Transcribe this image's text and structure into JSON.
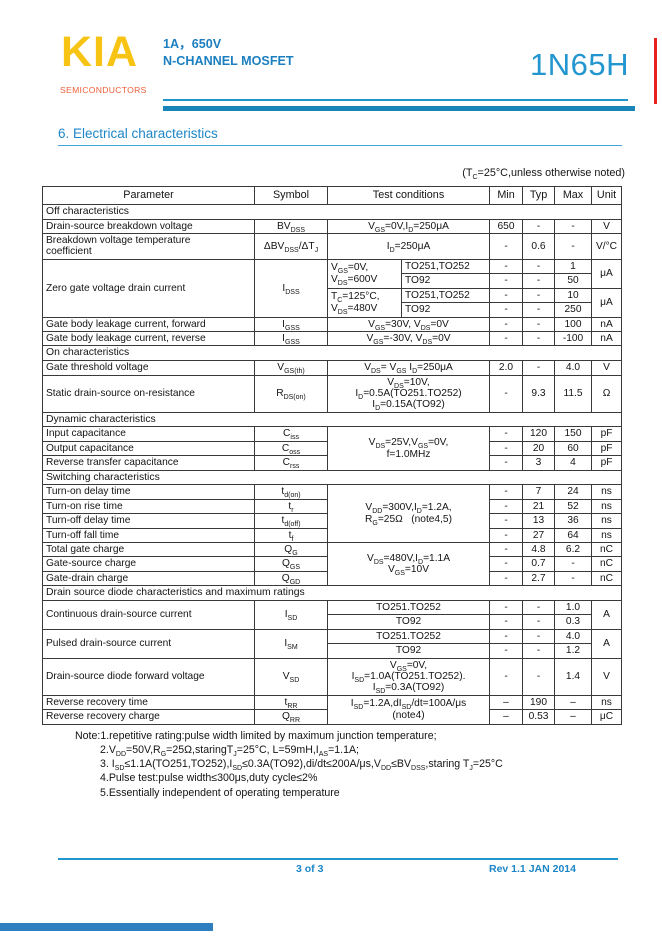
{
  "header": {
    "logo": "KIA",
    "logo_sub": "SEMICONDUCTORS",
    "rating": "1A，650V",
    "device_type": "N-CHANNEL MOSFET",
    "part_number": "1N65H",
    "colors": {
      "logo_yellow": "#f8c413",
      "logo_orange": "#ee5f38",
      "header_blue": "#1c7fc0",
      "rule_blue": "#2095cc",
      "red_accent": "#e8231d"
    }
  },
  "section_title": "6.  Electrical characteristics",
  "table_note": "(T~C~=25°C,unless otherwise noted)",
  "table": {
    "rows": [
      [
        "Parameter",
        "Symbol",
        {
          "t": "Test conditions",
          "c": 2
        },
        "Min",
        "Typ",
        "Max",
        "Unit"
      ],
      [
        {
          "t": "Off characteristics",
          "c": 8,
          "cls": "sec"
        }
      ],
      [
        {
          "t": "Drain-source breakdown voltage",
          "cls": "l"
        },
        "BV~DSS~",
        {
          "t": "V~GS~=0V,I~D~=250μA",
          "c": 2
        },
        "650",
        "-",
        "-",
        "V"
      ],
      [
        {
          "t": "Breakdown voltage temperature\ncoefficient",
          "cls": "l"
        },
        "ΔBV~DSS~/ΔT~J~",
        {
          "t": "I~D~=250μA",
          "c": 2
        },
        "-",
        "0.6",
        "-",
        "V/°C"
      ],
      [
        {
          "t": "Zero gate voltage drain current",
          "r": 4,
          "cls": "l"
        },
        {
          "t": "I~DSS~",
          "r": 4
        },
        {
          "t": "V~GS~=0V,\nV~DS~=600V",
          "r": 2,
          "cls": "l"
        },
        {
          "t": "TO251,TO252",
          "cls": "l"
        },
        "-",
        "-",
        "1",
        {
          "t": "μA",
          "r": 2
        }
      ],
      [
        {
          "t": "TO92",
          "cls": "l"
        },
        "-",
        "-",
        "50"
      ],
      [
        {
          "t": "T~C~=125°C,\nV~DS~=480V",
          "r": 2,
          "cls": "l"
        },
        {
          "t": "TO251,TO252",
          "cls": "l"
        },
        "-",
        "-",
        "10",
        {
          "t": "μA",
          "r": 2
        }
      ],
      [
        {
          "t": "TO92",
          "cls": "l"
        },
        "-",
        "-",
        "250"
      ],
      [
        {
          "t": "Gate body leakage current, forward",
          "cls": "l"
        },
        "I~GSS~",
        {
          "t": "V~GS~=30V, V~DS~=0V",
          "c": 2
        },
        "-",
        "-",
        "100",
        "nA"
      ],
      [
        {
          "t": "Gate body leakage current, reverse",
          "cls": "l"
        },
        "I~GSS~",
        {
          "t": "V~GS~=-30V, V~DS~=0V",
          "c": 2
        },
        "-",
        "-",
        "-100",
        "nA"
      ],
      [
        {
          "t": "On characteristics",
          "c": 8,
          "cls": "sec"
        }
      ],
      [
        {
          "t": "Gate threshold voltage",
          "cls": "l"
        },
        "V~GS(th)~",
        {
          "t": "V~DS~= V~GS~ I~D~=250μA",
          "c": 2
        },
        "2.0",
        "-",
        "4.0",
        "V"
      ],
      [
        {
          "t": "Static drain-source on-resistance",
          "cls": "l"
        },
        "R~DS(on)~",
        {
          "t": "V~DS~=10V,\nI~D~=0.5A(TO251.TO252)\nI~D~=0.15A(TO92)",
          "c": 2
        },
        "-",
        "9.3",
        "11.5",
        "Ω"
      ],
      [
        {
          "t": "Dynamic characteristics",
          "c": 8,
          "cls": "sec"
        }
      ],
      [
        {
          "t": "Input capacitance",
          "cls": "l"
        },
        "C~iss~",
        {
          "t": "V~DS~=25V,V~GS~=0V,\nf=1.0MHz",
          "c": 2,
          "r": 3
        },
        "-",
        "120",
        "150",
        "pF"
      ],
      [
        {
          "t": "Output capacitance",
          "cls": "l"
        },
        "C~oss~",
        "-",
        "20",
        "60",
        "pF"
      ],
      [
        {
          "t": "Reverse transfer capacitance",
          "cls": "l"
        },
        "C~rss~",
        "-",
        "3",
        "4",
        "pF"
      ],
      [
        {
          "t": "Switching characteristics",
          "c": 8,
          "cls": "sec"
        }
      ],
      [
        {
          "t": "Turn-on delay time",
          "cls": "l"
        },
        "t~d(on)~",
        {
          "t": "V~DD~=300V,I~D~=1.2A,\nR~G~=25Ω   (note4,5)",
          "c": 2,
          "r": 4
        },
        "-",
        "7",
        "24",
        "ns"
      ],
      [
        {
          "t": "Turn-on rise time",
          "cls": "l"
        },
        "t~r~",
        "-",
        "21",
        "52",
        "ns"
      ],
      [
        {
          "t": "Turn-off delay time",
          "cls": "l"
        },
        "t~d(off)~",
        "-",
        "13",
        "36",
        "ns"
      ],
      [
        {
          "t": "Turn-off fall time",
          "cls": "l"
        },
        "t~f~",
        "-",
        "27",
        "64",
        "ns"
      ],
      [
        {
          "t": "Total gate charge",
          "cls": "l"
        },
        "Q~G~",
        {
          "t": "V~DS~=480V,I~D~=1.1A\nV~GS~=10V",
          "c": 2,
          "r": 3
        },
        "-",
        "4.8",
        "6.2",
        "nC"
      ],
      [
        {
          "t": "Gate-source charge",
          "cls": "l"
        },
        "Q~GS~",
        "-",
        "0.7",
        "-",
        "nC"
      ],
      [
        {
          "t": "Gate-drain charge",
          "cls": "l"
        },
        "Q~GD~",
        "-",
        "2.7",
        "-",
        "nC"
      ],
      [
        {
          "t": "Drain source diode characteristics and maximum ratings",
          "c": 8,
          "cls": "sec"
        }
      ],
      [
        {
          "t": "Continuous drain-source current",
          "r": 2,
          "cls": "l"
        },
        {
          "t": "I~SD~",
          "r": 2
        },
        {
          "t": "TO251.TO252",
          "c": 2
        },
        "-",
        "-",
        "1.0",
        {
          "t": "A",
          "r": 2
        }
      ],
      [
        {
          "t": "TO92",
          "c": 2
        },
        "-",
        "-",
        "0.3"
      ],
      [
        {
          "t": "Pulsed drain-source current",
          "r": 2,
          "cls": "l"
        },
        {
          "t": "I~SM~",
          "r": 2
        },
        {
          "t": "TO251.TO252",
          "c": 2
        },
        "-",
        "-",
        "4.0",
        {
          "t": "A",
          "r": 2
        }
      ],
      [
        {
          "t": "TO92",
          "c": 2
        },
        "-",
        "-",
        "1.2"
      ],
      [
        {
          "t": "Drain-source diode forward voltage",
          "cls": "l"
        },
        "V~SD~",
        {
          "t": "V~GS~=0V,\nI~SD~=1.0A(TO251.TO252).\nI~SD~=0.3A(TO92)",
          "c": 2
        },
        "-",
        "-",
        "1.4",
        "V"
      ],
      [
        {
          "t": "Reverse recovery time",
          "cls": "l"
        },
        "t~RR~",
        {
          "t": "I~SD~=1.2A,dI~SD~/dt=100A/μs\n(note4)",
          "c": 2,
          "r": 2
        },
        "–",
        "190",
        "–",
        "ns"
      ],
      [
        {
          "t": "Reverse recovery charge",
          "cls": "l"
        },
        "Q~RR~",
        "–",
        "0.53",
        "–",
        "μC"
      ]
    ]
  },
  "notes": [
    "Note:1.repetitive rating:pulse width limited by maximum junction temperature;",
    "2.V~DD~=50V,R~G~=25Ω,staringT~J~=25°C, L=59mH,I~AS~=1.1A;",
    "3. I~SD~≤1.1A(TO251,TO252),I~SD~≤0.3A(TO92),di/dt≤200A/μs,V~DD~≤BV~DSS~,staring T~J~=25°C",
    "4.Pulse test:pulse width≤300μs,duty cycle≤2%",
    "5.Essentially independent of operating temperature"
  ],
  "footer": {
    "page": "3 of 3",
    "rev": "Rev 1.1 JAN 2014"
  }
}
